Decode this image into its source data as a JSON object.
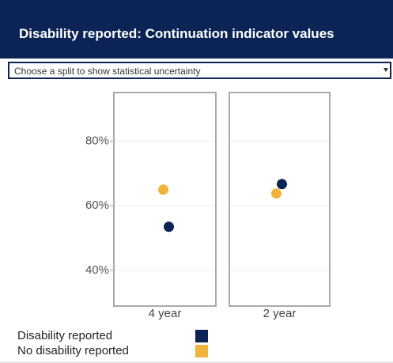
{
  "header": {
    "title": "Disability reported: Continuation indicator values"
  },
  "dropdown": {
    "placeholder": "Choose a split to show statistical uncertainty"
  },
  "chart_data": {
    "type": "scatter",
    "categories": [
      "4 year",
      "2 year"
    ],
    "series": [
      {
        "name": "Disability reported",
        "color": "#0b2455",
        "values": [
          53.5,
          66.7
        ]
      },
      {
        "name": "No disability reported",
        "color": "#f0b43c",
        "values": [
          65,
          63.8
        ]
      }
    ],
    "ylim": [
      29,
      95
    ],
    "yticks": [
      {
        "value": 40,
        "label": "40%"
      },
      {
        "value": 60,
        "label": "60%"
      },
      {
        "value": 80,
        "label": "80%"
      }
    ],
    "grid": true
  }
}
